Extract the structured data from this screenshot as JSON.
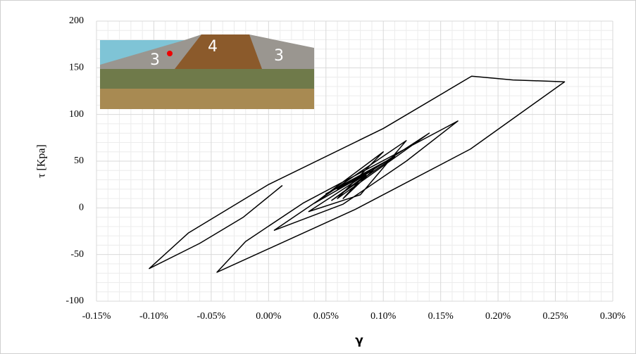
{
  "chart_data": {
    "type": "line",
    "x_label": "γ",
    "y_label": "τ [Kpa]",
    "inset_labels": [
      "3",
      "4",
      "3"
    ],
    "x": [
      0.012,
      -0.022,
      -0.06,
      -0.104,
      -0.07,
      0.0,
      0.1,
      0.177,
      0.213,
      0.258,
      0.176,
      0.075,
      -0.045,
      -0.02,
      0.03,
      0.165,
      0.12,
      0.065,
      0.005,
      0.12,
      0.08,
      0.035,
      0.14,
      0.06,
      0.1,
      0.04,
      0.09,
      0.05,
      0.11,
      0.055,
      0.085,
      0.06,
      0.095,
      0.065,
      0.08
    ],
    "values": [
      24,
      -10,
      -38,
      -65,
      -27,
      25,
      85,
      141,
      137,
      135,
      63,
      -2,
      -69,
      -36,
      5,
      93,
      50,
      4,
      -24,
      72,
      14,
      -4,
      80,
      10,
      60,
      5,
      40,
      15,
      55,
      8,
      35,
      20,
      45,
      10,
      30
    ],
    "color": "#000000",
    "xlim": [
      -0.15,
      0.3
    ],
    "xticks": [
      {
        "value": -0.15,
        "label": "-0.15%"
      },
      {
        "value": -0.1,
        "label": "-0.10%"
      },
      {
        "value": -0.05,
        "label": "-0.05%"
      },
      {
        "value": 0,
        "label": "0.00%"
      },
      {
        "value": 0.05,
        "label": "0.05%"
      },
      {
        "value": 0.1,
        "label": "0.10%"
      },
      {
        "value": 0.15,
        "label": "0.15%"
      },
      {
        "value": 0.2,
        "label": "0.20%"
      },
      {
        "value": 0.25,
        "label": "0.25%"
      },
      {
        "value": 0.3,
        "label": "0.30%"
      }
    ],
    "ylim": [
      -100,
      200
    ],
    "yticks": [
      -100,
      -50,
      0,
      50,
      100,
      150,
      200
    ],
    "grid": true,
    "minor_grid": true
  }
}
